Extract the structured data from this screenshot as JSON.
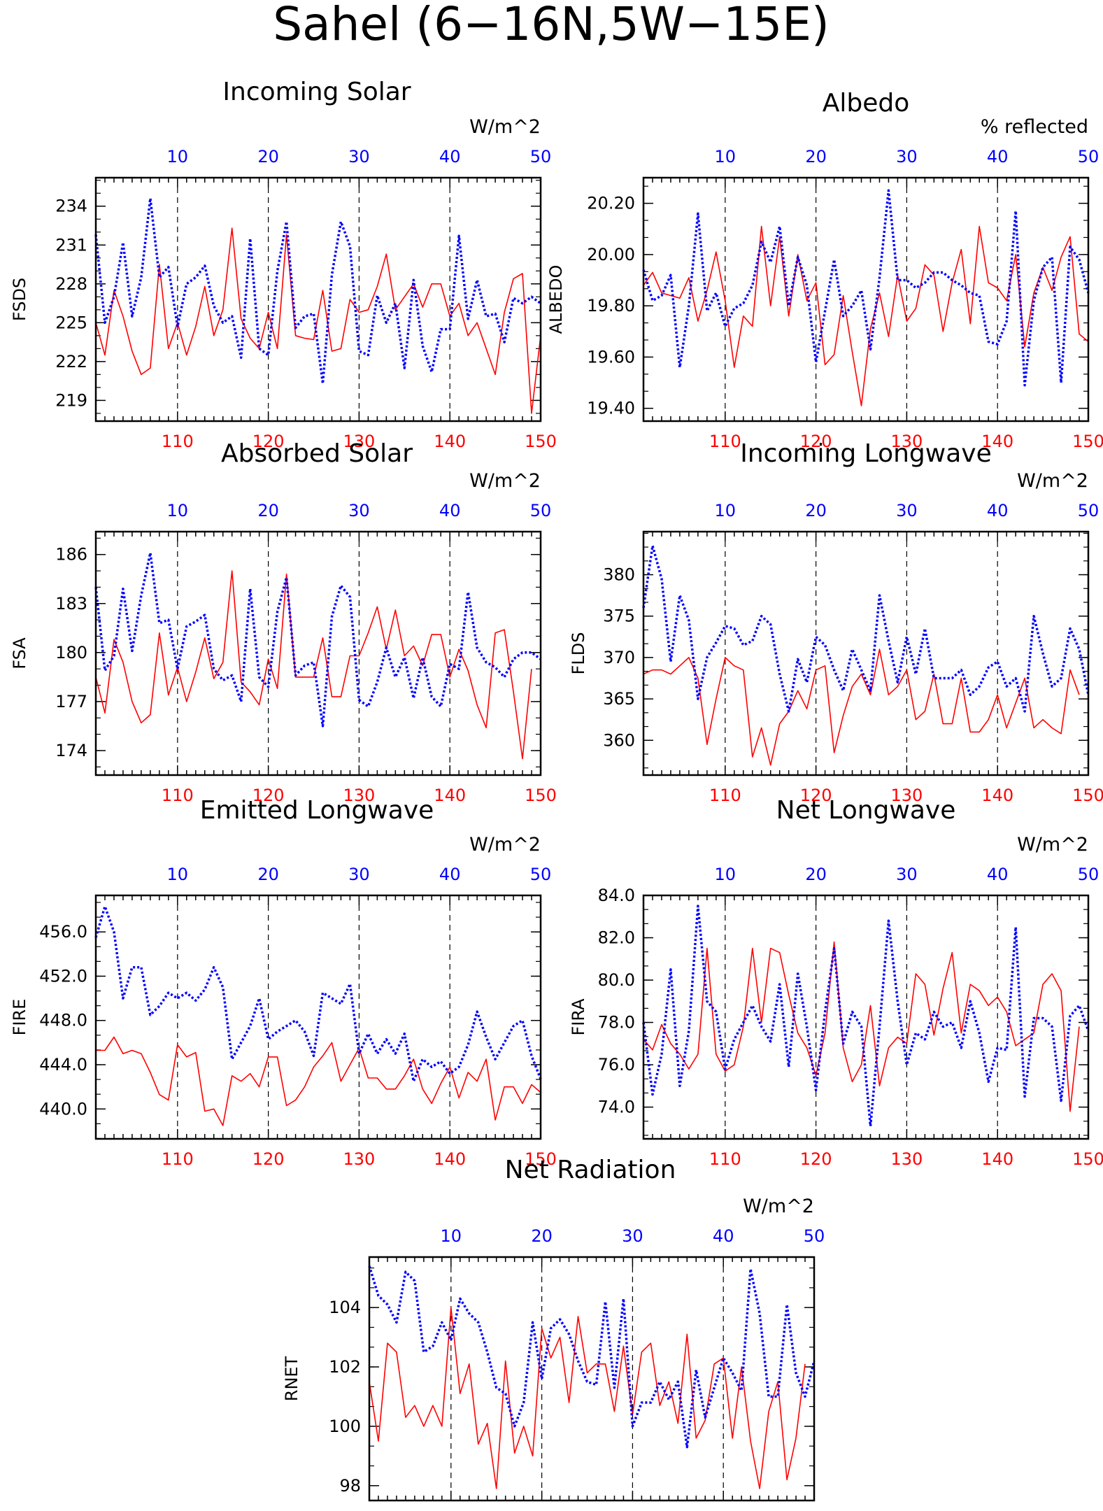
{
  "page": {
    "title": "Sahel (6−16N,5W−15E)"
  },
  "colors": {
    "red_series": "#ff0000",
    "blue_series": "#0000ff",
    "frame": "#000000",
    "grid": "#000000"
  },
  "chart_data": [
    {
      "type": "line",
      "title": "Incoming Solar",
      "units": "W/m^2",
      "ylabel": "FSDS",
      "ylim": [
        217.4,
        236.2
      ],
      "yticks": [
        "234",
        "231",
        "228",
        "225",
        "222",
        "219"
      ],
      "x_bottom": {
        "range": [
          101,
          150
        ],
        "ticks": [
          110,
          120,
          130,
          140,
          150
        ]
      },
      "x_top": {
        "range": [
          1,
          50
        ],
        "ticks": [
          10,
          20,
          30,
          40,
          50
        ]
      },
      "grid_vertical_at": [
        110,
        120,
        130,
        140
      ],
      "series": [
        {
          "color": "red",
          "style": "solid",
          "values": [
            225,
            222.5,
            227.5,
            225.5,
            222.8,
            221,
            221.5,
            229.5,
            223,
            225,
            222.5,
            224.7,
            227.8,
            224,
            226,
            232.3,
            225.3,
            223.8,
            223,
            225.8,
            223,
            231.8,
            224,
            223.8,
            223.7,
            227.5,
            222.8,
            223,
            226.8,
            225.8,
            226,
            227.8,
            230.3,
            226,
            227,
            228,
            226.2,
            228,
            228,
            225.5,
            226.5,
            224,
            225,
            223,
            221,
            225.8,
            228.4,
            228.8,
            218,
            224
          ]
        },
        {
          "color": "blue",
          "style": "dotted",
          "values": [
            231.8,
            225,
            227,
            231.2,
            225.5,
            228.5,
            234.6,
            228.5,
            229.3,
            224.7,
            228,
            228.5,
            229.4,
            226.3,
            225,
            225.5,
            222.3,
            231.5,
            223,
            222.5,
            229,
            232.8,
            224.6,
            225.5,
            225.7,
            220.3,
            228.7,
            232.8,
            230.9,
            222.8,
            222.5,
            227.1,
            225,
            226.5,
            221.5,
            228.3,
            223.2,
            221.2,
            224.5,
            224.5,
            231.7,
            225.3,
            228.3,
            225.5,
            225.7,
            223.5,
            226.9,
            226.5,
            227,
            226.5
          ]
        }
      ]
    },
    {
      "type": "line",
      "title": "Albedo",
      "units": "% reflected",
      "ylabel": "ALBEDO",
      "ylim": [
        19.35,
        20.3
      ],
      "yticks": [
        "20.20",
        "20.00",
        "19.80",
        "19.60",
        "19.40"
      ],
      "x_bottom": {
        "range": [
          101,
          150
        ],
        "ticks": [
          110,
          120,
          130,
          140,
          150
        ]
      },
      "x_top": {
        "range": [
          1,
          50
        ],
        "ticks": [
          10,
          20,
          30,
          40,
          50
        ]
      },
      "grid_vertical_at": [
        110,
        120,
        130,
        140
      ],
      "series": [
        {
          "color": "red",
          "style": "solid",
          "values": [
            19.88,
            19.93,
            19.85,
            19.84,
            19.83,
            19.91,
            19.74,
            19.86,
            20.01,
            19.82,
            19.56,
            19.76,
            19.72,
            20.11,
            19.8,
            20.07,
            19.76,
            20,
            19.82,
            19.89,
            19.57,
            19.61,
            19.84,
            19.62,
            19.41,
            19.71,
            19.85,
            19.68,
            19.92,
            19.74,
            19.79,
            19.96,
            19.92,
            19.7,
            19.89,
            20.02,
            19.73,
            20.11,
            19.89,
            19.87,
            19.82,
            20,
            19.64,
            19.85,
            19.95,
            19.86,
            19.99,
            20.07,
            19.69,
            19.66
          ]
        },
        {
          "color": "blue",
          "style": "dotted",
          "values": [
            19.94,
            19.82,
            19.84,
            19.92,
            19.56,
            19.8,
            20.16,
            19.78,
            19.85,
            19.72,
            19.79,
            19.81,
            19.88,
            20.05,
            19.97,
            20.11,
            19.8,
            19.99,
            19.88,
            19.58,
            19.78,
            19.98,
            19.76,
            19.8,
            19.86,
            19.63,
            19.91,
            20.25,
            19.9,
            19.9,
            19.87,
            19.89,
            19.93,
            19.93,
            19.9,
            19.88,
            19.85,
            19.84,
            19.66,
            19.65,
            19.74,
            20.17,
            19.49,
            19.82,
            19.95,
            19.99,
            19.5,
            20.03,
            19.98,
            19.85
          ]
        }
      ]
    },
    {
      "type": "line",
      "title": "Absorbed Solar",
      "units": "W/m^2",
      "ylabel": "FSA",
      "ylim": [
        172.5,
        187.4
      ],
      "yticks": [
        "186",
        "183",
        "180",
        "177",
        "174"
      ],
      "x_bottom": {
        "range": [
          101,
          150
        ],
        "ticks": [
          110,
          120,
          130,
          140,
          150
        ]
      },
      "x_top": {
        "range": [
          1,
          50
        ],
        "ticks": [
          10,
          20,
          30,
          40,
          50
        ]
      },
      "grid_vertical_at": [
        110,
        120,
        130,
        140
      ],
      "series": [
        {
          "color": "red",
          "style": "solid",
          "values": [
            178.5,
            176.3,
            180.8,
            179.4,
            177,
            175.7,
            176.2,
            181.2,
            177.4,
            179.1,
            177,
            178.8,
            180.9,
            178.4,
            179.4,
            185,
            178.2,
            177.6,
            176.8,
            179.6,
            177.8,
            184.8,
            178.5,
            178.5,
            178.5,
            180.9,
            177.3,
            177.3,
            179.8,
            179.8,
            181.2,
            182.8,
            180.2,
            182.6,
            179.8,
            180.4,
            179.2,
            181.1,
            181.1,
            178.5,
            180.2,
            178.9,
            176.8,
            175.4,
            181.2,
            181.4,
            177.6,
            173.5,
            179
          ]
        },
        {
          "color": "blue",
          "style": "dotted",
          "values": [
            184,
            178.9,
            179.8,
            183.9,
            180.1,
            183.5,
            186.1,
            181.8,
            182,
            179,
            181.6,
            181.9,
            182.3,
            179,
            178.3,
            178.6,
            177,
            183.9,
            178.5,
            177.9,
            182.5,
            184.6,
            178.6,
            179.2,
            179.4,
            175.5,
            182.2,
            184.1,
            183.4,
            177.1,
            176.7,
            178.2,
            180.3,
            178.5,
            179.7,
            177.2,
            179.7,
            177.3,
            176.7,
            179.3,
            179,
            183.7,
            180.3,
            179.4,
            179.1,
            178.5,
            179.6,
            180,
            180,
            179.6
          ]
        }
      ]
    },
    {
      "type": "line",
      "title": "Incoming Longwave",
      "units": "W/m^2",
      "ylabel": "FLDS",
      "ylim": [
        355.8,
        385.2
      ],
      "yticks": [
        "380",
        "375",
        "370",
        "365",
        "360"
      ],
      "x_bottom": {
        "range": [
          101,
          150
        ],
        "ticks": [
          110,
          120,
          130,
          140,
          150
        ]
      },
      "x_top": {
        "range": [
          1,
          50
        ],
        "ticks": [
          10,
          20,
          30,
          40,
          50
        ]
      },
      "grid_vertical_at": [
        110,
        120,
        130,
        140
      ],
      "series": [
        {
          "color": "red",
          "style": "solid",
          "values": [
            368,
            368.5,
            368.5,
            368,
            369,
            370,
            367.5,
            359.5,
            365,
            370,
            369,
            368.5,
            358,
            361.5,
            357,
            362,
            363.5,
            366,
            363.8,
            368.5,
            369,
            358.5,
            363,
            366.5,
            368,
            365.5,
            371,
            365.5,
            366.5,
            368.5,
            362.5,
            363.5,
            368,
            362,
            362,
            367.5,
            361,
            361,
            362.5,
            365.5,
            361.5,
            364.5,
            367.5,
            361.5,
            362.5,
            361.5,
            360.8,
            368.5,
            365.5
          ]
        },
        {
          "color": "blue",
          "style": "dotted",
          "values": [
            376,
            383.5,
            379.5,
            369.5,
            377.5,
            374.5,
            365,
            370,
            371.8,
            373.8,
            373.5,
            371.5,
            372,
            375,
            374,
            368,
            363.5,
            369.8,
            367,
            372.5,
            371.5,
            368.5,
            366,
            371,
            368.5,
            366,
            377.5,
            372,
            367,
            372.5,
            368,
            373.5,
            367.5,
            367.5,
            367.5,
            368.5,
            365.5,
            366.5,
            368.8,
            369.5,
            366.5,
            367.5,
            363.5,
            375,
            370.5,
            366.5,
            367.5,
            373.5,
            371,
            365.5
          ]
        }
      ]
    },
    {
      "type": "line",
      "title": "Emitted Longwave",
      "units": "W/m^2",
      "ylabel": "FIRE",
      "ylim": [
        437.3,
        459.3
      ],
      "yticks": [
        "456.0",
        "452.0",
        "448.0",
        "444.0",
        "440.0"
      ],
      "x_bottom": {
        "range": [
          101,
          150
        ],
        "ticks": [
          110,
          120,
          130,
          140,
          150
        ]
      },
      "x_top": {
        "range": [
          1,
          50
        ],
        "ticks": [
          10,
          20,
          30,
          40,
          50
        ]
      },
      "grid_vertical_at": [
        110,
        120,
        130,
        140
      ],
      "series": [
        {
          "color": "red",
          "style": "solid",
          "values": [
            445.3,
            445.3,
            446.5,
            445,
            445.3,
            445,
            443.3,
            441.3,
            440.8,
            445.8,
            444.7,
            445.1,
            439.8,
            440,
            438.5,
            443,
            442.5,
            443.2,
            442,
            444.7,
            444.7,
            440.3,
            440.8,
            442,
            443.8,
            444.8,
            446,
            442.5,
            444,
            445.5,
            442.8,
            442.8,
            441.8,
            441.8,
            443,
            444.5,
            441.8,
            440.5,
            442.3,
            443.8,
            441,
            443.3,
            442.5,
            444.5,
            439,
            442,
            442,
            440.5,
            442.2,
            441.5
          ]
        },
        {
          "color": "blue",
          "style": "dotted",
          "values": [
            455.5,
            458.3,
            456,
            450,
            452.8,
            452.8,
            448.5,
            449.3,
            450.5,
            450,
            450.5,
            449.8,
            450.8,
            452.8,
            451,
            444.5,
            446,
            447.5,
            450,
            446.3,
            447,
            447.5,
            448,
            447,
            444.8,
            450.5,
            450,
            449.5,
            451.3,
            445,
            446.8,
            445,
            446.3,
            445,
            446.8,
            442.5,
            444.5,
            443.8,
            444.3,
            443.2,
            443.8,
            445.8,
            448.8,
            446.5,
            444.5,
            446,
            447.5,
            448,
            444.8,
            442.7
          ]
        }
      ]
    },
    {
      "type": "line",
      "title": "Net Longwave",
      "units": "W/m^2",
      "ylabel": "FIRA",
      "ylim": [
        72.5,
        84.0
      ],
      "yticks": [
        "84.0",
        "82.0",
        "80.0",
        "78.0",
        "76.0",
        "74.0"
      ],
      "x_bottom": {
        "range": [
          101,
          150
        ],
        "ticks": [
          110,
          120,
          130,
          140,
          150
        ]
      },
      "x_top": {
        "range": [
          1,
          50
        ],
        "ticks": [
          10,
          20,
          30,
          40,
          50
        ]
      },
      "grid_vertical_at": [
        110,
        120,
        130,
        140
      ],
      "series": [
        {
          "color": "red",
          "style": "solid",
          "values": [
            77.2,
            76.7,
            77.9,
            77,
            76.5,
            75.8,
            76.5,
            81.5,
            76.5,
            75.7,
            76,
            77.8,
            81.5,
            78,
            81.5,
            81.3,
            79.3,
            77.5,
            76.8,
            75.5,
            77.5,
            81.8,
            76.8,
            75.2,
            76,
            78.8,
            75,
            76.8,
            77.3,
            77,
            80.3,
            79.8,
            77.4,
            79.6,
            81.3,
            77.5,
            79.8,
            79.5,
            78.8,
            79.2,
            78.5,
            76.9,
            77.2,
            77.5,
            79.8,
            80.3,
            79.5,
            73.8,
            77.8
          ]
        },
        {
          "color": "blue",
          "style": "dotted",
          "values": [
            78,
            74.6,
            76.5,
            80.5,
            75,
            77.6,
            83.5,
            79,
            78.5,
            75.8,
            77.2,
            78,
            78.8,
            77.8,
            77.1,
            79.8,
            75.9,
            80.3,
            77.8,
            74.8,
            78.5,
            81.5,
            77,
            78.5,
            77.8,
            73.1,
            77.8,
            82.8,
            79,
            76,
            77.5,
            77.2,
            78.5,
            77.8,
            78,
            76.8,
            79,
            77.5,
            75.2,
            76.8,
            76.7,
            82.5,
            74.5,
            78.2,
            78.2,
            77.8,
            74.3,
            78.3,
            78.8,
            77.6
          ]
        }
      ]
    },
    {
      "type": "line",
      "title": "Net Radiation",
      "units": "W/m^2",
      "ylabel": "RNET",
      "ylim": [
        97.5,
        105.7
      ],
      "yticks": [
        "104",
        "102",
        "100",
        "98"
      ],
      "x_bottom": {
        "range": [
          101,
          150
        ],
        "ticks": [
          110,
          120,
          130,
          140,
          150
        ]
      },
      "x_top": {
        "range": [
          1,
          50
        ],
        "ticks": [
          10,
          20,
          30,
          40,
          50
        ]
      },
      "grid_vertical_at": [
        110,
        120,
        130,
        140
      ],
      "series": [
        {
          "color": "red",
          "style": "solid",
          "values": [
            101.5,
            99.5,
            102.8,
            102.5,
            100.3,
            100.7,
            100,
            100.7,
            100,
            104,
            101.1,
            102.1,
            99.4,
            100.1,
            97.9,
            102.2,
            99.1,
            100,
            99,
            103.3,
            102.3,
            103,
            100.8,
            103.7,
            101.8,
            102.1,
            102.1,
            100.5,
            102.7,
            100.4,
            102.5,
            102.8,
            100.7,
            101.5,
            100.1,
            103.1,
            99.6,
            100.2,
            102.1,
            102.3,
            99.6,
            102,
            99.5,
            97.9,
            100.5,
            101.5,
            98.2,
            99.6,
            102.1
          ]
        },
        {
          "color": "blue",
          "style": "dotted",
          "values": [
            105.4,
            104.4,
            104.1,
            103.5,
            105.2,
            104.9,
            102.5,
            102.7,
            103.5,
            102.9,
            104.3,
            103.8,
            103.5,
            102.5,
            101.3,
            101.1,
            100,
            100.8,
            103.5,
            101.6,
            103.3,
            103.6,
            103.1,
            102.2,
            101.5,
            101.4,
            104.2,
            101.3,
            104.3,
            100,
            100.8,
            100.8,
            101.5,
            100.9,
            101.5,
            99.3,
            101.9,
            100.3,
            101.3,
            102.3,
            101.8,
            101.2,
            105.3,
            103.8,
            101,
            101,
            104.1,
            101.8,
            101,
            102.2
          ]
        }
      ]
    }
  ]
}
